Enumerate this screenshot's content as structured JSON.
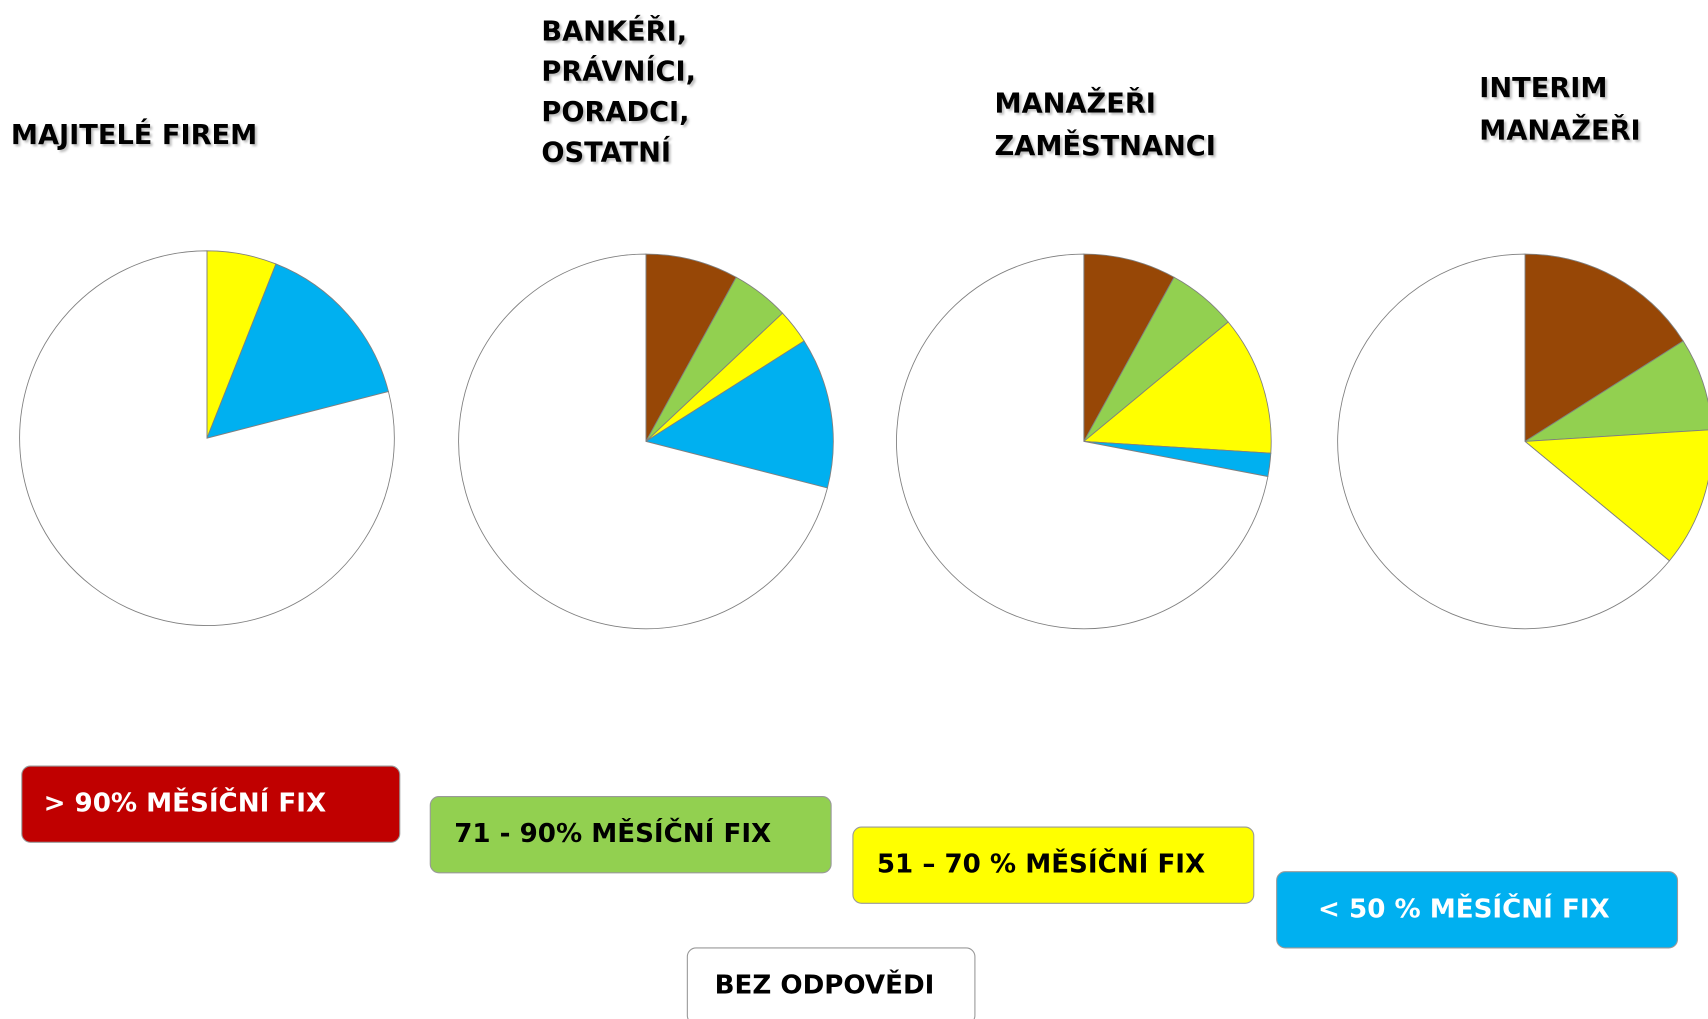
{
  "chart_data": [
    {
      "type": "pie",
      "title": [
        "MAJITELÉ FIREM"
      ],
      "values": [
        0,
        0,
        6,
        15,
        79
      ],
      "colors": [
        "#974706",
        "#92d050",
        "#ffff00",
        "#00b0f0",
        "#ffffff"
      ]
    },
    {
      "type": "pie",
      "title": [
        "BANKÉŘI,",
        "PRÁVNÍCI,",
        "PORADCI,",
        "OSTATNÍ"
      ],
      "values": [
        8,
        5,
        3,
        13,
        71
      ],
      "colors": [
        "#974706",
        "#92d050",
        "#ffff00",
        "#00b0f0",
        "#ffffff"
      ]
    },
    {
      "type": "pie",
      "title": [
        "MANAŽEŘI",
        "ZAMĚSTNANCI"
      ],
      "values": [
        8,
        6,
        12,
        2,
        72
      ],
      "colors": [
        "#974706",
        "#92d050",
        "#ffff00",
        "#00b0f0",
        "#ffffff"
      ]
    },
    {
      "type": "pie",
      "title": [
        "INTERIM",
        "MANAŽEŘI"
      ],
      "values": [
        16,
        8,
        12,
        0,
        64
      ],
      "colors": [
        "#974706",
        "#92d050",
        "#ffff00",
        "#00b0f0",
        "#ffffff"
      ]
    }
  ],
  "legend": {
    "labels": [
      "> 90% MĚSÍČNÍ FIX",
      "71  -  90% MĚSÍČNÍ FIX",
      "51 – 70 % MĚSÍČNÍ FIX",
      "< 50 % MĚSÍČNÍ FIX",
      "BEZ ODPOVĚDI"
    ],
    "colors": [
      "#c00000",
      "#92d050",
      "#ffff00",
      "#00b0f0",
      "#ffffff"
    ],
    "text_colors": [
      "#ffffff",
      "#000000",
      "#000000",
      "#ffffff",
      "#000000"
    ]
  }
}
